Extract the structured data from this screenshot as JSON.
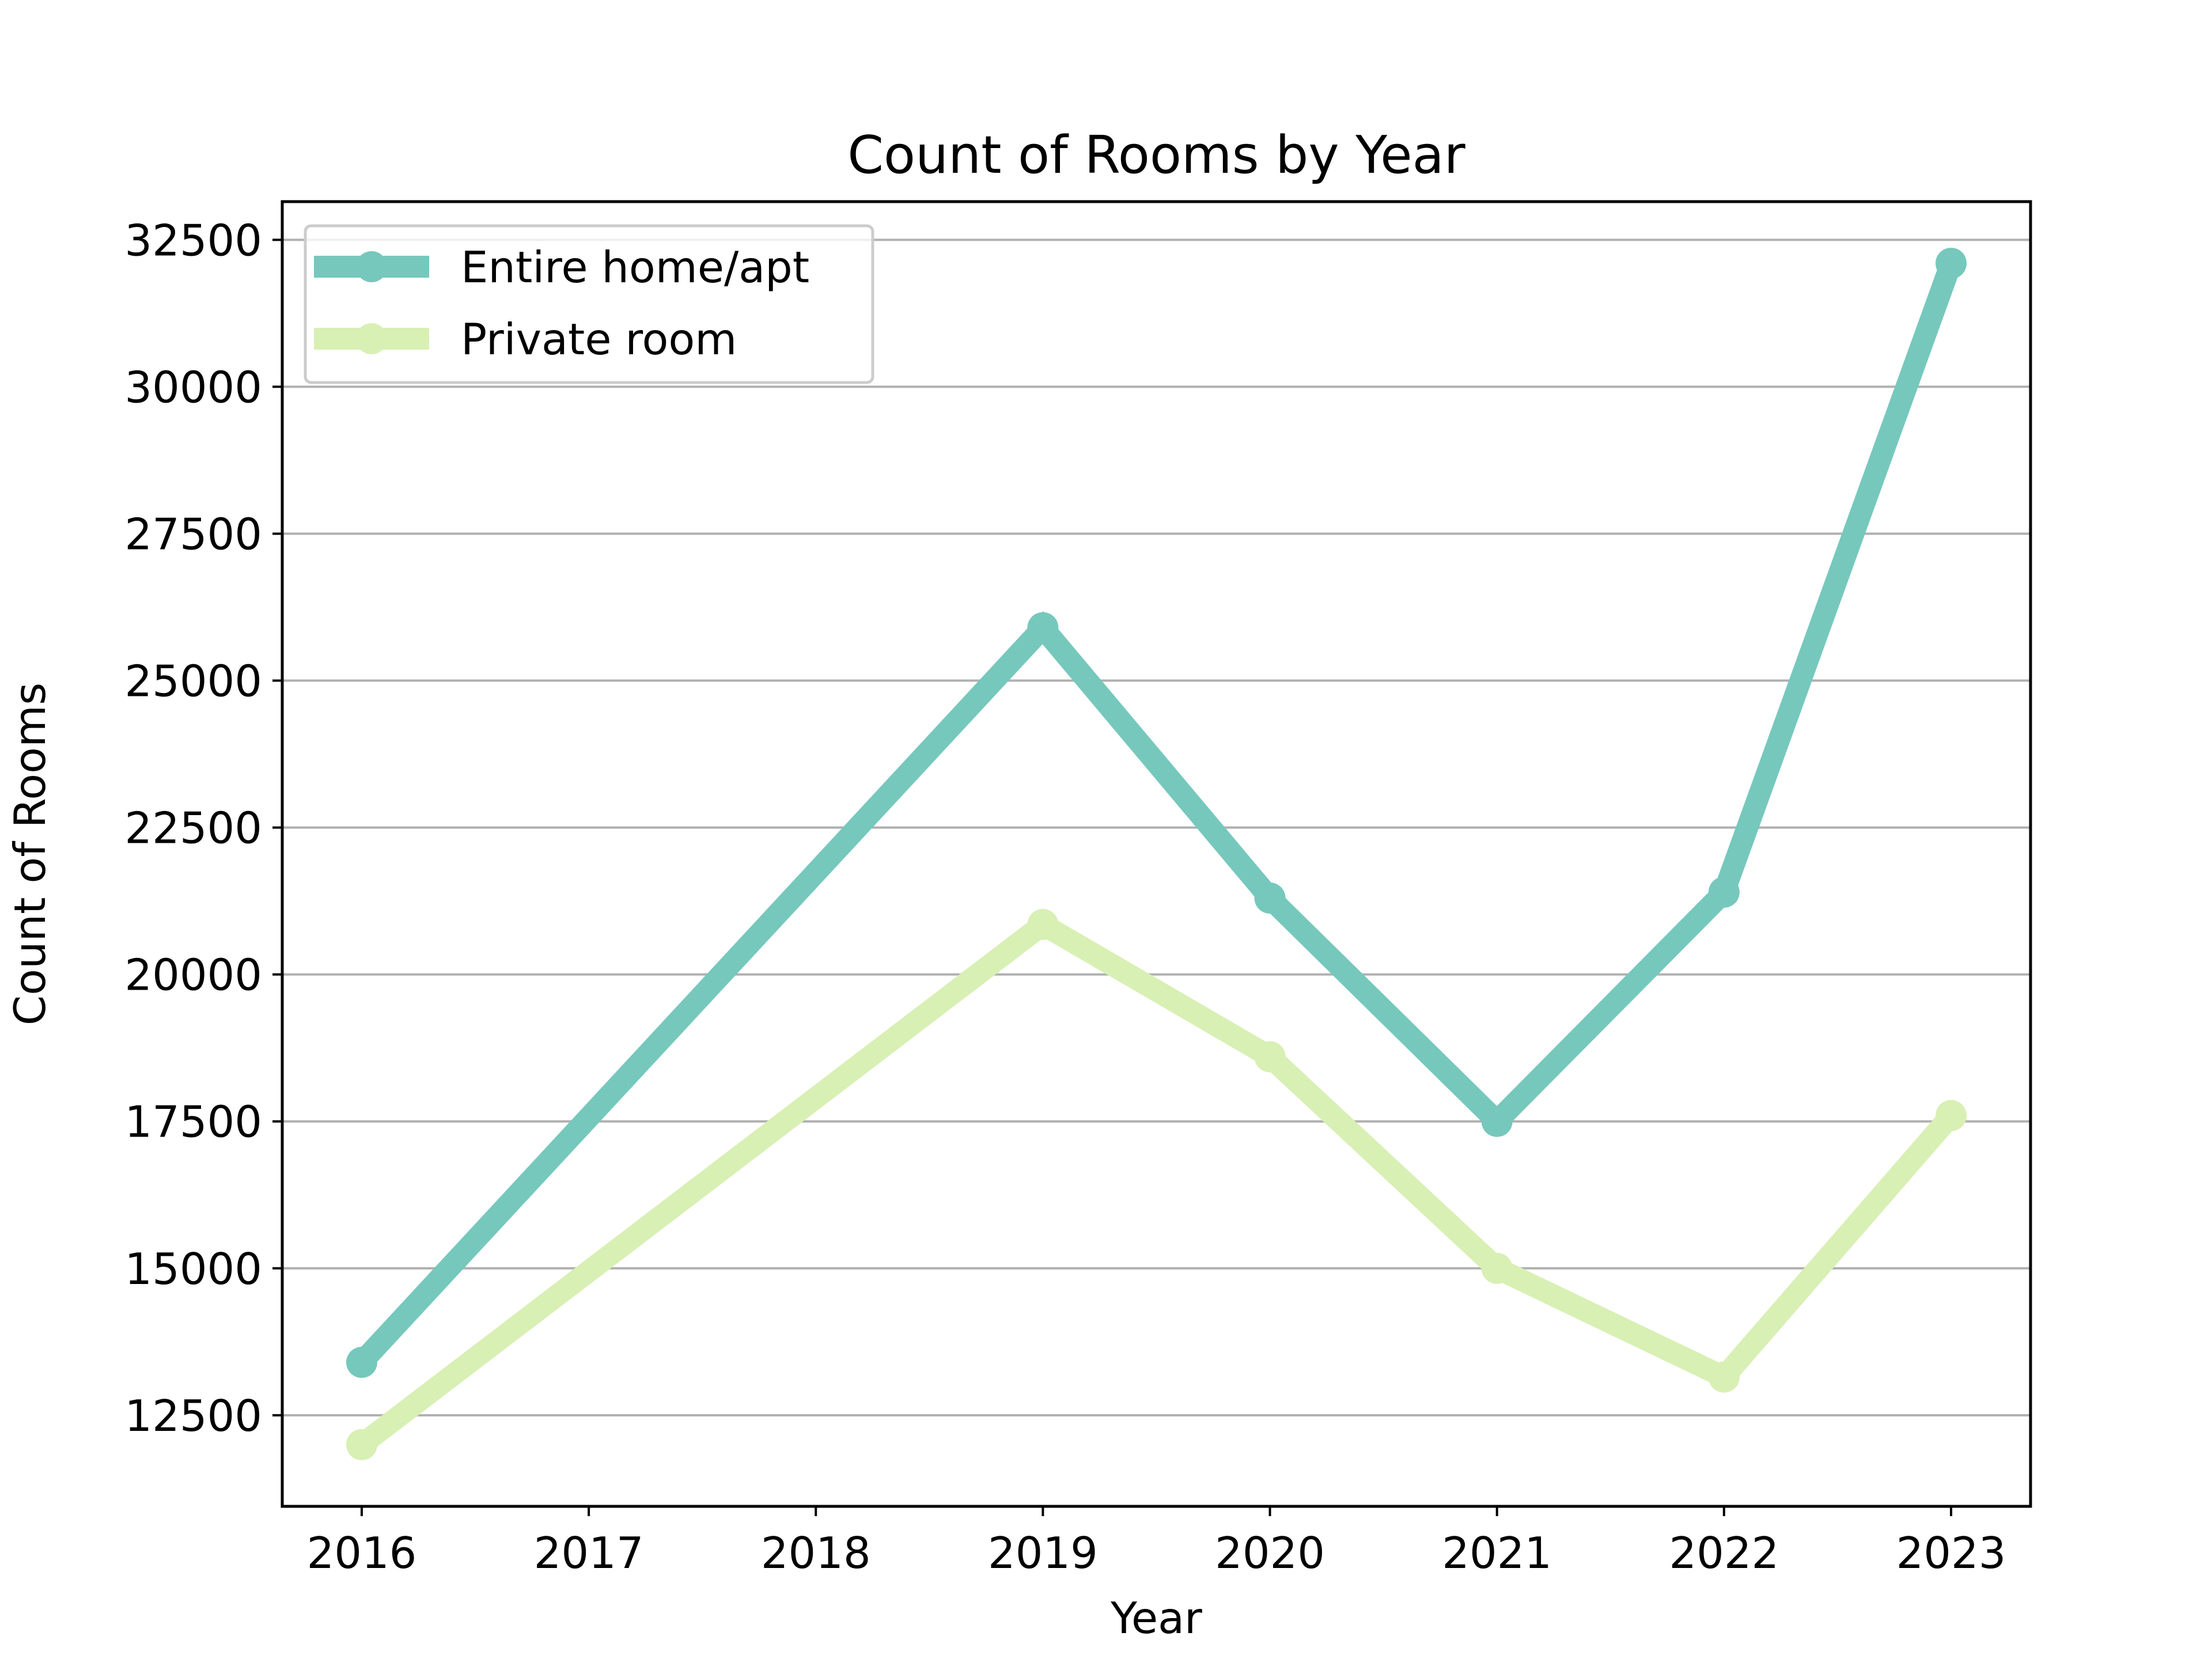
{
  "chart_data": {
    "type": "line",
    "title": "Count of Rooms by Year",
    "xlabel": "Year",
    "ylabel": "Count of Rooms",
    "x": [
      2016,
      2017,
      2018,
      2019,
      2020,
      2021,
      2022,
      2023
    ],
    "x_tick_labels": [
      "2016",
      "2017",
      "2018",
      "2019",
      "2020",
      "2021",
      "2022",
      "2023"
    ],
    "y_ticks": [
      12500,
      15000,
      17500,
      20000,
      22500,
      25000,
      27500,
      30000,
      32500
    ],
    "y_tick_labels": [
      "12500",
      "15000",
      "17500",
      "20000",
      "22500",
      "25000",
      "27500",
      "30000",
      "32500"
    ],
    "xlim": [
      2015.65,
      2023.35
    ],
    "ylim": [
      10950,
      33150
    ],
    "grid": "horizontal",
    "legend_position": "upper-left",
    "series": [
      {
        "name": "Entire home/apt",
        "color": "#76c8bc",
        "points": [
          {
            "x": 2016,
            "y": 13400
          },
          {
            "x": 2019,
            "y": 25900
          },
          {
            "x": 2020,
            "y": 21300
          },
          {
            "x": 2021,
            "y": 17500
          },
          {
            "x": 2022,
            "y": 21400
          },
          {
            "x": 2023,
            "y": 32100
          }
        ]
      },
      {
        "name": "Private room",
        "color": "#d8f0b4",
        "points": [
          {
            "x": 2016,
            "y": 12000
          },
          {
            "x": 2019,
            "y": 20850
          },
          {
            "x": 2020,
            "y": 18600
          },
          {
            "x": 2021,
            "y": 15000
          },
          {
            "x": 2022,
            "y": 13150
          },
          {
            "x": 2023,
            "y": 17600
          }
        ]
      }
    ]
  }
}
